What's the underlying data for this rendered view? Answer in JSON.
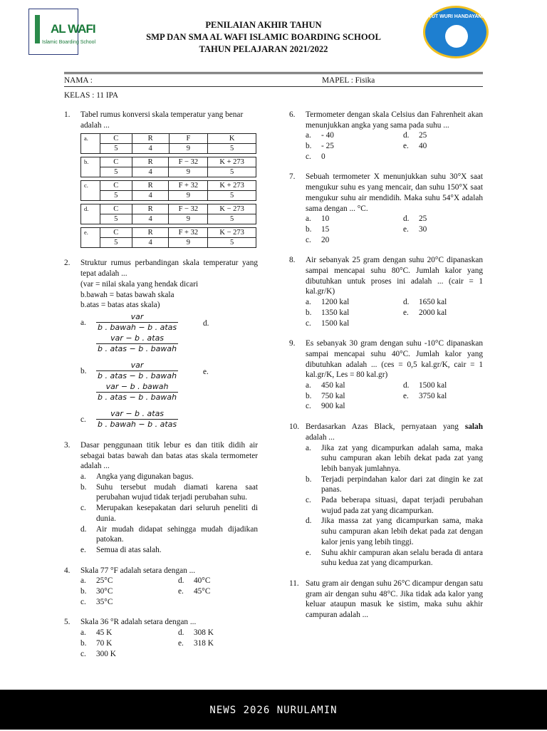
{
  "header": {
    "logo_text": "AL WAFI",
    "logo_sub": "Islamic Boarding School",
    "seal_text": "TUT WURI HANDAYANI",
    "title1": "PENILAIAN AKHIR TAHUN",
    "title2": "SMP DAN SMA AL WAFI ISLAMIC BOARDING SCHOOL",
    "title3": "TAHUN PELAJARAN 2021/2022"
  },
  "info": {
    "nama": "NAMA :",
    "mapel": "MAPEL : Fisika",
    "kelas": "KELAS : 11 IPA"
  },
  "q1": {
    "num": "1.",
    "text": "Tabel rumus konversi skala temperatur yang benar adalah ...",
    "tables": [
      {
        "label": "a.",
        "top": [
          "C",
          "R",
          "F",
          "K"
        ],
        "bottom": [
          "5",
          "4",
          "9",
          "5"
        ]
      },
      {
        "label": "b.",
        "top": [
          "C",
          "R",
          "F − 32",
          "K + 273"
        ],
        "bottom": [
          "5",
          "4",
          "9",
          "5"
        ]
      },
      {
        "label": "c.",
        "top": [
          "C",
          "R",
          "F + 32",
          "K + 273"
        ],
        "bottom": [
          "5",
          "4",
          "9",
          "5"
        ]
      },
      {
        "label": "d.",
        "top": [
          "C",
          "R",
          "F − 32",
          "K − 273"
        ],
        "bottom": [
          "5",
          "4",
          "9",
          "5"
        ]
      },
      {
        "label": "e.",
        "top": [
          "C",
          "R",
          "F + 32",
          "K − 273"
        ],
        "bottom": [
          "5",
          "4",
          "9",
          "5"
        ]
      }
    ]
  },
  "q2": {
    "num": "2.",
    "text": "Struktur rumus perbandingan skala temperatur yang tepat adalah ...",
    "notes": [
      "(var = nilai skala yang hendak dicari",
      "b.bawah = batas bawah skala",
      "b.atas = batas atas skala)"
    ],
    "options": [
      {
        "label": "a.",
        "num": "var",
        "den": "b . bawah − b . atas",
        "after": "d."
      },
      {
        "label": "",
        "num": "var − b . atas",
        "den": "b . atas − b . bawah"
      },
      {
        "label": "b.",
        "num": "var",
        "den": "b . atas − b . bawah",
        "after": "e."
      },
      {
        "label": "",
        "num": "var − b . bawah",
        "den": "b . atas − b . bawah"
      },
      {
        "label": "c.",
        "num": "var − b . atas",
        "den": "b . bawah − b . atas"
      }
    ]
  },
  "q3": {
    "num": "3.",
    "text": "Dasar penggunaan titik lebur es dan titik didih air sebagai batas bawah dan batas atas skala termometer adalah ...",
    "options": [
      {
        "label": "a.",
        "text": "Angka yang digunakan bagus."
      },
      {
        "label": "b.",
        "text": "Suhu tersebut mudah diamati karena saat perubahan wujud tidak terjadi perubahan suhu."
      },
      {
        "label": "c.",
        "text": "Merupakan kesepakatan dari seluruh peneliti di dunia."
      },
      {
        "label": "d.",
        "text": "Air mudah didapat sehingga mudah dijadikan patokan."
      },
      {
        "label": "e.",
        "text": "Semua di atas salah."
      }
    ]
  },
  "q4": {
    "num": "4.",
    "text": "Skala 77 °F adalah setara dengan ...",
    "a": "25°C",
    "b": "30°C",
    "c": "35°C",
    "d": "40°C",
    "e": "45°C"
  },
  "q5": {
    "num": "5.",
    "text": "Skala 36 °R adalah setara dengan ...",
    "a": "45 K",
    "b": "70 K",
    "c": "300 K",
    "d": "308 K",
    "e": "318 K"
  },
  "q6": {
    "num": "6.",
    "text": "Termometer dengan skala Celsius dan Fahrenheit akan menunjukkan angka yang sama pada suhu ...",
    "a": "- 40",
    "b": "- 25",
    "c": "0",
    "d": "25",
    "e": "40"
  },
  "q7": {
    "num": "7.",
    "text": "Sebuah termometer X menunjukkan suhu 30°X saat mengukur suhu es yang mencair, dan suhu 150°X saat mengukur suhu air mendidih. Maka suhu 54°X adalah sama dengan ... °C.",
    "a": "10",
    "b": "15",
    "c": "20",
    "d": "25",
    "e": "30"
  },
  "q8": {
    "num": "8.",
    "text": "Air sebanyak 25 gram dengan suhu 20°C dipanaskan sampai mencapai suhu 80°C. Jumlah kalor yang dibutuhkan untuk proses ini adalah ... (cair = 1 kal.gr/K)",
    "a": "1200 kal",
    "b": "1350 kal",
    "c": "1500 kal",
    "d": "1650 kal",
    "e": "2000 kal"
  },
  "q9": {
    "num": "9.",
    "text": "Es sebanyak 30 gram dengan suhu -10°C dipanaskan sampai mencapai suhu 40°C. Jumlah kalor yang dibutuhkan adalah ... (ces = 0,5 kal.gr/K, cair = 1 kal.gr/K, Les = 80 kal.gr)",
    "a": "450 kal",
    "b": "750 kal",
    "c": "900 kal",
    "d": "1500 kal",
    "e": "3750 kal"
  },
  "q10": {
    "num": "10.",
    "text_pre": "Berdasarkan Azas Black, pernyataan yang ",
    "text_bold": "salah",
    "text_post": " adalah ...",
    "options": [
      {
        "label": "a.",
        "text": "Jika zat yang dicampurkan adalah sama, maka suhu campuran akan lebih dekat pada zat yang lebih banyak jumlahnya."
      },
      {
        "label": "b.",
        "text": "Terjadi perpindahan kalor dari zat dingin ke zat panas."
      },
      {
        "label": "c.",
        "text": "Pada beberapa situasi, dapat terjadi perubahan wujud pada zat yang dicampurkan."
      },
      {
        "label": "d.",
        "text": "Jika massa zat yang dicampurkan sama, maka suhu campuran akan lebih dekat pada zat dengan kalor jenis yang lebih tinggi."
      },
      {
        "label": "e.",
        "text": "Suhu akhir campuran akan selalu berada di antara suhu kedua zat yang dicampurkan."
      }
    ]
  },
  "q11": {
    "num": "11.",
    "text": "Satu gram air dengan suhu 26°C dicampur dengan satu gram air dengan suhu 48°C. Jika tidak ada kalor yang keluar ataupun masuk ke sistim, maka suhu akhir campuran adalah ..."
  },
  "footer": {
    "text": "NEWS 2026 NURULAMIN"
  }
}
